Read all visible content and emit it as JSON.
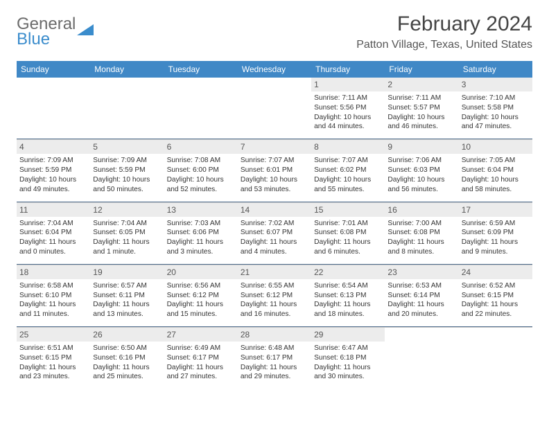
{
  "logo": {
    "line1": "General",
    "line2": "Blue"
  },
  "title": "February 2024",
  "location": "Patton Village, Texas, United States",
  "weekdays": [
    "Sunday",
    "Monday",
    "Tuesday",
    "Wednesday",
    "Thursday",
    "Friday",
    "Saturday"
  ],
  "colors": {
    "header_bg": "#4088c6",
    "header_text": "#ffffff",
    "sep_color": "#4d6a8a",
    "daynum_bg": "#ececec",
    "text": "#333333",
    "logo_gray": "#6b6b6b",
    "logo_blue": "#3a8ccc"
  },
  "typography": {
    "title_fontsize": 30,
    "location_fontsize": 16,
    "weekday_fontsize": 12,
    "cell_fontsize": 10.2,
    "daynum_fontsize": 12
  },
  "weeks": [
    [
      {
        "day": "",
        "sunrise": "",
        "sunset": "",
        "daylight": ""
      },
      {
        "day": "",
        "sunrise": "",
        "sunset": "",
        "daylight": ""
      },
      {
        "day": "",
        "sunrise": "",
        "sunset": "",
        "daylight": ""
      },
      {
        "day": "",
        "sunrise": "",
        "sunset": "",
        "daylight": ""
      },
      {
        "day": "1",
        "sunrise": "Sunrise: 7:11 AM",
        "sunset": "Sunset: 5:56 PM",
        "daylight": "Daylight: 10 hours and 44 minutes."
      },
      {
        "day": "2",
        "sunrise": "Sunrise: 7:11 AM",
        "sunset": "Sunset: 5:57 PM",
        "daylight": "Daylight: 10 hours and 46 minutes."
      },
      {
        "day": "3",
        "sunrise": "Sunrise: 7:10 AM",
        "sunset": "Sunset: 5:58 PM",
        "daylight": "Daylight: 10 hours and 47 minutes."
      }
    ],
    [
      {
        "day": "4",
        "sunrise": "Sunrise: 7:09 AM",
        "sunset": "Sunset: 5:59 PM",
        "daylight": "Daylight: 10 hours and 49 minutes."
      },
      {
        "day": "5",
        "sunrise": "Sunrise: 7:09 AM",
        "sunset": "Sunset: 5:59 PM",
        "daylight": "Daylight: 10 hours and 50 minutes."
      },
      {
        "day": "6",
        "sunrise": "Sunrise: 7:08 AM",
        "sunset": "Sunset: 6:00 PM",
        "daylight": "Daylight: 10 hours and 52 minutes."
      },
      {
        "day": "7",
        "sunrise": "Sunrise: 7:07 AM",
        "sunset": "Sunset: 6:01 PM",
        "daylight": "Daylight: 10 hours and 53 minutes."
      },
      {
        "day": "8",
        "sunrise": "Sunrise: 7:07 AM",
        "sunset": "Sunset: 6:02 PM",
        "daylight": "Daylight: 10 hours and 55 minutes."
      },
      {
        "day": "9",
        "sunrise": "Sunrise: 7:06 AM",
        "sunset": "Sunset: 6:03 PM",
        "daylight": "Daylight: 10 hours and 56 minutes."
      },
      {
        "day": "10",
        "sunrise": "Sunrise: 7:05 AM",
        "sunset": "Sunset: 6:04 PM",
        "daylight": "Daylight: 10 hours and 58 minutes."
      }
    ],
    [
      {
        "day": "11",
        "sunrise": "Sunrise: 7:04 AM",
        "sunset": "Sunset: 6:04 PM",
        "daylight": "Daylight: 11 hours and 0 minutes."
      },
      {
        "day": "12",
        "sunrise": "Sunrise: 7:04 AM",
        "sunset": "Sunset: 6:05 PM",
        "daylight": "Daylight: 11 hours and 1 minute."
      },
      {
        "day": "13",
        "sunrise": "Sunrise: 7:03 AM",
        "sunset": "Sunset: 6:06 PM",
        "daylight": "Daylight: 11 hours and 3 minutes."
      },
      {
        "day": "14",
        "sunrise": "Sunrise: 7:02 AM",
        "sunset": "Sunset: 6:07 PM",
        "daylight": "Daylight: 11 hours and 4 minutes."
      },
      {
        "day": "15",
        "sunrise": "Sunrise: 7:01 AM",
        "sunset": "Sunset: 6:08 PM",
        "daylight": "Daylight: 11 hours and 6 minutes."
      },
      {
        "day": "16",
        "sunrise": "Sunrise: 7:00 AM",
        "sunset": "Sunset: 6:08 PM",
        "daylight": "Daylight: 11 hours and 8 minutes."
      },
      {
        "day": "17",
        "sunrise": "Sunrise: 6:59 AM",
        "sunset": "Sunset: 6:09 PM",
        "daylight": "Daylight: 11 hours and 9 minutes."
      }
    ],
    [
      {
        "day": "18",
        "sunrise": "Sunrise: 6:58 AM",
        "sunset": "Sunset: 6:10 PM",
        "daylight": "Daylight: 11 hours and 11 minutes."
      },
      {
        "day": "19",
        "sunrise": "Sunrise: 6:57 AM",
        "sunset": "Sunset: 6:11 PM",
        "daylight": "Daylight: 11 hours and 13 minutes."
      },
      {
        "day": "20",
        "sunrise": "Sunrise: 6:56 AM",
        "sunset": "Sunset: 6:12 PM",
        "daylight": "Daylight: 11 hours and 15 minutes."
      },
      {
        "day": "21",
        "sunrise": "Sunrise: 6:55 AM",
        "sunset": "Sunset: 6:12 PM",
        "daylight": "Daylight: 11 hours and 16 minutes."
      },
      {
        "day": "22",
        "sunrise": "Sunrise: 6:54 AM",
        "sunset": "Sunset: 6:13 PM",
        "daylight": "Daylight: 11 hours and 18 minutes."
      },
      {
        "day": "23",
        "sunrise": "Sunrise: 6:53 AM",
        "sunset": "Sunset: 6:14 PM",
        "daylight": "Daylight: 11 hours and 20 minutes."
      },
      {
        "day": "24",
        "sunrise": "Sunrise: 6:52 AM",
        "sunset": "Sunset: 6:15 PM",
        "daylight": "Daylight: 11 hours and 22 minutes."
      }
    ],
    [
      {
        "day": "25",
        "sunrise": "Sunrise: 6:51 AM",
        "sunset": "Sunset: 6:15 PM",
        "daylight": "Daylight: 11 hours and 23 minutes."
      },
      {
        "day": "26",
        "sunrise": "Sunrise: 6:50 AM",
        "sunset": "Sunset: 6:16 PM",
        "daylight": "Daylight: 11 hours and 25 minutes."
      },
      {
        "day": "27",
        "sunrise": "Sunrise: 6:49 AM",
        "sunset": "Sunset: 6:17 PM",
        "daylight": "Daylight: 11 hours and 27 minutes."
      },
      {
        "day": "28",
        "sunrise": "Sunrise: 6:48 AM",
        "sunset": "Sunset: 6:17 PM",
        "daylight": "Daylight: 11 hours and 29 minutes."
      },
      {
        "day": "29",
        "sunrise": "Sunrise: 6:47 AM",
        "sunset": "Sunset: 6:18 PM",
        "daylight": "Daylight: 11 hours and 30 minutes."
      },
      {
        "day": "",
        "sunrise": "",
        "sunset": "",
        "daylight": ""
      },
      {
        "day": "",
        "sunrise": "",
        "sunset": "",
        "daylight": ""
      }
    ]
  ]
}
